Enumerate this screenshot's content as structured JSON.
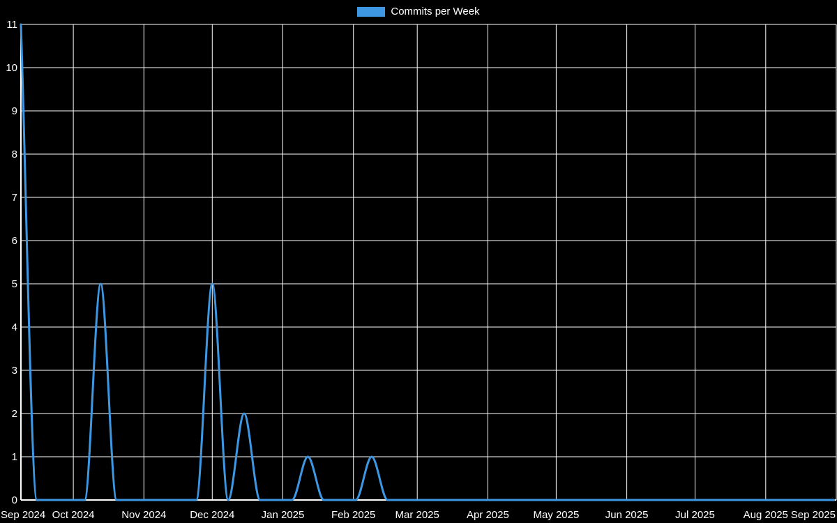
{
  "chart_data": {
    "type": "line",
    "line_style": "smooth",
    "legend": {
      "label": "Commits per Week",
      "position": "top-center"
    },
    "colors": {
      "background": "#000000",
      "grid": "#ffffff",
      "axis": "#ffffff",
      "text": "#ffffff",
      "series": "#3d97e3"
    },
    "series": [
      {
        "name": "Commits per Week",
        "color": "#3d97e3",
        "start_week": "2024-09-08",
        "interval_days": 7,
        "values": [
          11,
          0,
          0,
          0,
          0,
          5,
          0,
          0,
          0,
          0,
          0,
          0,
          5,
          0,
          2,
          0,
          0,
          0,
          1,
          0,
          0,
          0,
          1,
          0,
          0,
          0,
          0,
          0,
          0,
          0,
          0,
          0,
          0,
          0,
          0,
          0,
          0,
          0,
          0,
          0,
          0,
          0,
          0,
          0,
          0,
          0,
          0,
          0,
          0,
          0,
          0,
          0
        ]
      }
    ],
    "x_axis": {
      "start": "2024-09-08",
      "end": "2025-09-01",
      "ticks": [
        {
          "date": "2024-09-08",
          "label": "Sep 2024"
        },
        {
          "date": "2024-10-01",
          "label": "Oct 2024"
        },
        {
          "date": "2024-11-01",
          "label": "Nov 2024"
        },
        {
          "date": "2024-12-01",
          "label": "Dec 2024"
        },
        {
          "date": "2025-01-01",
          "label": "Jan 2025"
        },
        {
          "date": "2025-02-01",
          "label": "Feb 2025"
        },
        {
          "date": "2025-03-01",
          "label": "Mar 2025"
        },
        {
          "date": "2025-04-01",
          "label": "Apr 2025"
        },
        {
          "date": "2025-05-01",
          "label": "May 2025"
        },
        {
          "date": "2025-06-01",
          "label": "Jun 2025"
        },
        {
          "date": "2025-07-01",
          "label": "Jul 2025"
        },
        {
          "date": "2025-08-01",
          "label": "Aug 2025"
        },
        {
          "date": "2025-09-01",
          "label": "Sep 2025"
        }
      ]
    },
    "y_axis": {
      "min": 0,
      "max": 11,
      "tick_step": 1,
      "tick_labels": [
        "0",
        "1",
        "2",
        "3",
        "4",
        "5",
        "6",
        "7",
        "8",
        "9",
        "10",
        "11"
      ]
    },
    "grid": {
      "show": true
    }
  }
}
